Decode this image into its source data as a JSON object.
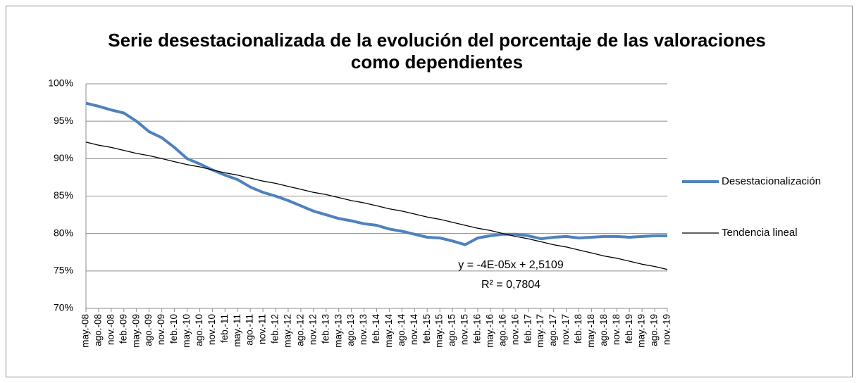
{
  "chart_data": {
    "type": "line",
    "title": "Serie desestacionalizada de la evolución del porcentaje de las valoraciones como dependientes",
    "categories": [
      "may.-08",
      "ago.-08",
      "nov.-08",
      "feb.-09",
      "may.-09",
      "ago.-09",
      "nov.-09",
      "feb.-10",
      "may.-10",
      "ago.-10",
      "nov.-10",
      "feb.-11",
      "may.-11",
      "ago.-11",
      "nov.-11",
      "feb.-12",
      "may.-12",
      "ago.-12",
      "nov.-12",
      "feb.-13",
      "may.-13",
      "ago.-13",
      "nov.-13",
      "feb.-14",
      "may.-14",
      "ago.-14",
      "nov.-14",
      "feb.-15",
      "may.-15",
      "ago.-15",
      "nov.-15",
      "feb.-16",
      "may.-16",
      "ago.-16",
      "nov.-16",
      "feb.-17",
      "may.-17",
      "ago.-17",
      "nov.-17",
      "feb.-18",
      "may.-18",
      "ago.-18",
      "nov.-18",
      "feb.-19",
      "may.-19",
      "ago.-19",
      "nov.-19"
    ],
    "series": [
      {
        "name": "Desestacionalización",
        "color": "#4f81bd",
        "width": 4,
        "values": [
          97.4,
          97.0,
          96.5,
          96.1,
          95.0,
          93.6,
          92.8,
          91.5,
          90.0,
          89.3,
          88.5,
          87.8,
          87.2,
          86.2,
          85.5,
          85.0,
          84.4,
          83.7,
          83.0,
          82.5,
          82.0,
          81.7,
          81.3,
          81.1,
          80.6,
          80.3,
          79.9,
          79.5,
          79.4,
          79.0,
          78.5,
          79.4,
          79.7,
          79.9,
          79.9,
          79.7,
          79.3,
          79.5,
          79.6,
          79.4,
          79.5,
          79.6,
          79.6,
          79.5,
          79.6,
          79.7,
          79.7
        ]
      },
      {
        "name": "Tendencia lineal",
        "color": "#000000",
        "width": 1.3,
        "values": [
          92.2,
          91.8,
          91.5,
          91.1,
          90.7,
          90.4,
          90.0,
          89.6,
          89.2,
          88.9,
          88.5,
          88.1,
          87.8,
          87.4,
          87.0,
          86.7,
          86.3,
          85.9,
          85.5,
          85.2,
          84.8,
          84.4,
          84.1,
          83.7,
          83.3,
          83.0,
          82.6,
          82.2,
          81.9,
          81.5,
          81.1,
          80.7,
          80.4,
          80.0,
          79.6,
          79.3,
          78.9,
          78.5,
          78.2,
          77.8,
          77.4,
          77.0,
          76.7,
          76.3,
          75.9,
          75.6,
          75.2
        ]
      }
    ],
    "annotations": [
      "y = -4E-05x + 2,5109",
      "R² = 0,7804"
    ],
    "ylim": [
      70,
      100
    ],
    "yticks": [
      {
        "value": 70,
        "label": "70%"
      },
      {
        "value": 75,
        "label": "75%"
      },
      {
        "value": 80,
        "label": "80%"
      },
      {
        "value": 85,
        "label": "85%"
      },
      {
        "value": 90,
        "label": "90%"
      },
      {
        "value": 95,
        "label": "95%"
      },
      {
        "value": 100,
        "label": "100%"
      }
    ],
    "grid": true,
    "legend": "right"
  }
}
